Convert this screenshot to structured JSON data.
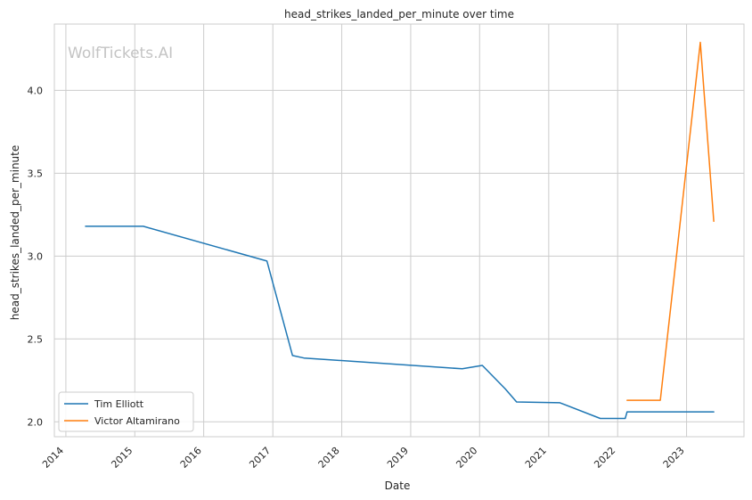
{
  "watermark": "WolfTickets.AI",
  "chart_data": {
    "type": "line",
    "title": "head_strikes_landed_per_minute over time",
    "xlabel": "Date",
    "ylabel": "head_strikes_landed_per_minute",
    "x_ticks": [
      "2014",
      "2015",
      "2016",
      "2017",
      "2018",
      "2019",
      "2020",
      "2021",
      "2022",
      "2023"
    ],
    "y_ticks": [
      "2.0",
      "2.5",
      "3.0",
      "3.5",
      "4.0"
    ],
    "xlim": [
      "2013-11-01",
      "2023-11-01"
    ],
    "ylim": [
      1.91,
      4.4
    ],
    "grid": true,
    "legend_position": "lower-left",
    "series": [
      {
        "name": "Tim Elliott",
        "color": "#1f77b4",
        "points": [
          [
            "2014-04-15",
            3.18
          ],
          [
            "2015-02-15",
            3.18
          ],
          [
            "2016-12-01",
            2.97
          ],
          [
            "2017-04-15",
            2.4
          ],
          [
            "2017-06-15",
            2.385
          ],
          [
            "2019-10-01",
            2.32
          ],
          [
            "2020-01-15",
            2.34
          ],
          [
            "2020-05-15",
            2.2
          ],
          [
            "2020-07-15",
            2.12
          ],
          [
            "2021-03-01",
            2.115
          ],
          [
            "2021-10-01",
            2.02
          ],
          [
            "2022-02-10",
            2.02
          ],
          [
            "2022-02-20",
            2.06
          ],
          [
            "2023-03-01",
            2.06
          ],
          [
            "2023-05-25",
            2.06
          ]
        ]
      },
      {
        "name": "Victor Altamirano",
        "color": "#ff7f0e",
        "points": [
          [
            "2022-02-20",
            2.13
          ],
          [
            "2022-08-15",
            2.13
          ],
          [
            "2023-03-15",
            4.29
          ],
          [
            "2023-05-25",
            3.21
          ]
        ]
      }
    ]
  }
}
